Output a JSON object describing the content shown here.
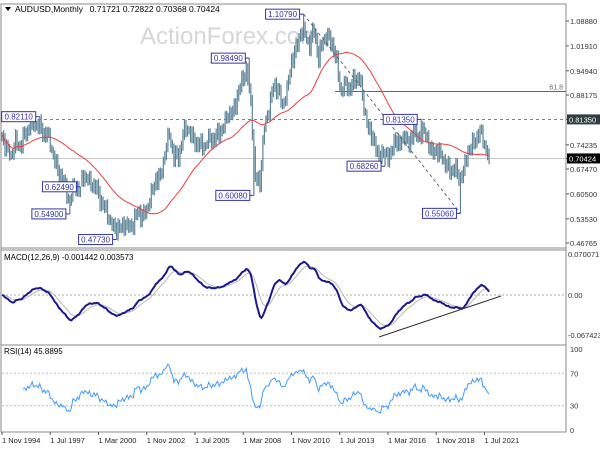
{
  "header": {
    "dropdown_icon": "triangle-down-icon",
    "symbol": "AUDUSD,Monthly",
    "ohlc": "0.71721 0.72822 0.70368 0.70424"
  },
  "watermark": "ActionForex.com",
  "colors": {
    "bars": "#5f8599",
    "moving_average": "#f03c3c",
    "macd": "#1a1a8c",
    "macd_signal": "#b8b8b8",
    "rsi": "#3d9bff",
    "swing_label": "#3333aa",
    "current_price_bg": "#000000",
    "level_bg": "#2f3f3f"
  },
  "chart_data": [
    {
      "type": "bar",
      "title": "AUDUSD,Monthly",
      "x_tick_labels": [
        "1 Nov 1994",
        "1 Jul 1997",
        "1 Mar 2000",
        "1 Nov 2002",
        "1 Jul 2005",
        "1 Mar 2008",
        "1 Nov 2010",
        "1 Jul 2013",
        "1 Mar 2016",
        "1 Nov 2018",
        "1 Jul 2021"
      ],
      "y_tick_labels": [
        "1.08880",
        "1.01910",
        "0.94940",
        "0.88175",
        "0.81350",
        "0.74235",
        "0.70424",
        "0.67470",
        "0.60500",
        "0.53530",
        "0.46765"
      ],
      "ylim": [
        0.46765,
        1.0888
      ],
      "current_price": "0.70424",
      "closes": [
        [
          "1994-11",
          0.77
        ],
        [
          "1995-02",
          0.73
        ],
        [
          "1995-05",
          0.71
        ],
        [
          "1995-08",
          0.75
        ],
        [
          "1995-11",
          0.74
        ],
        [
          "1996-02",
          0.77
        ],
        [
          "1996-05",
          0.79
        ],
        [
          "1996-08",
          0.8
        ],
        [
          "1996-11",
          0.8
        ],
        [
          "1997-02",
          0.78
        ],
        [
          "1997-05",
          0.77
        ],
        [
          "1997-08",
          0.73
        ],
        [
          "1997-11",
          0.68
        ],
        [
          "1998-02",
          0.66
        ],
        [
          "1998-05",
          0.62
        ],
        [
          "1998-08",
          0.58
        ],
        [
          "1998-11",
          0.63
        ],
        [
          "1999-02",
          0.62
        ],
        [
          "1999-05",
          0.66
        ],
        [
          "1999-08",
          0.64
        ],
        [
          "1999-11",
          0.63
        ],
        [
          "2000-02",
          0.62
        ],
        [
          "2000-05",
          0.58
        ],
        [
          "2000-08",
          0.56
        ],
        [
          "2000-11",
          0.52
        ],
        [
          "2001-02",
          0.51
        ],
        [
          "2001-05",
          0.51
        ],
        [
          "2001-08",
          0.52
        ],
        [
          "2001-11",
          0.51
        ],
        [
          "2002-02",
          0.52
        ],
        [
          "2002-05",
          0.56
        ],
        [
          "2002-08",
          0.54
        ],
        [
          "2002-11",
          0.56
        ],
        [
          "2003-02",
          0.6
        ],
        [
          "2003-05",
          0.65
        ],
        [
          "2003-08",
          0.65
        ],
        [
          "2003-11",
          0.72
        ],
        [
          "2004-02",
          0.77
        ],
        [
          "2004-05",
          0.71
        ],
        [
          "2004-08",
          0.71
        ],
        [
          "2004-11",
          0.77
        ],
        [
          "2005-02",
          0.79
        ],
        [
          "2005-05",
          0.76
        ],
        [
          "2005-08",
          0.75
        ],
        [
          "2005-11",
          0.74
        ],
        [
          "2006-02",
          0.74
        ],
        [
          "2006-05",
          0.76
        ],
        [
          "2006-08",
          0.76
        ],
        [
          "2006-11",
          0.78
        ],
        [
          "2007-02",
          0.79
        ],
        [
          "2007-05",
          0.83
        ],
        [
          "2007-08",
          0.83
        ],
        [
          "2007-11",
          0.88
        ],
        [
          "2008-02",
          0.92
        ],
        [
          "2008-05",
          0.95
        ],
        [
          "2008-08",
          0.86
        ],
        [
          "2008-11",
          0.65
        ],
        [
          "2009-02",
          0.64
        ],
        [
          "2009-05",
          0.79
        ],
        [
          "2009-08",
          0.84
        ],
        [
          "2009-11",
          0.91
        ],
        [
          "2010-02",
          0.9
        ],
        [
          "2010-05",
          0.85
        ],
        [
          "2010-08",
          0.89
        ],
        [
          "2010-11",
          0.98
        ],
        [
          "2011-02",
          1.01
        ],
        [
          "2011-05",
          1.06
        ],
        [
          "2011-08",
          1.05
        ],
        [
          "2011-11",
          1.02
        ],
        [
          "2012-02",
          1.07
        ],
        [
          "2012-05",
          0.98
        ],
        [
          "2012-08",
          1.04
        ],
        [
          "2012-11",
          1.04
        ],
        [
          "2013-02",
          1.03
        ],
        [
          "2013-05",
          0.97
        ],
        [
          "2013-08",
          0.89
        ],
        [
          "2013-11",
          0.91
        ],
        [
          "2014-02",
          0.9
        ],
        [
          "2014-05",
          0.93
        ],
        [
          "2014-08",
          0.93
        ],
        [
          "2014-11",
          0.85
        ],
        [
          "2015-02",
          0.78
        ],
        [
          "2015-05",
          0.77
        ],
        [
          "2015-08",
          0.71
        ],
        [
          "2015-11",
          0.72
        ],
        [
          "2016-02",
          0.71
        ],
        [
          "2016-05",
          0.72
        ],
        [
          "2016-08",
          0.76
        ],
        [
          "2016-11",
          0.74
        ],
        [
          "2017-02",
          0.77
        ],
        [
          "2017-05",
          0.74
        ],
        [
          "2017-08",
          0.79
        ],
        [
          "2017-11",
          0.76
        ],
        [
          "2018-02",
          0.78
        ],
        [
          "2018-05",
          0.76
        ],
        [
          "2018-08",
          0.72
        ],
        [
          "2018-11",
          0.73
        ],
        [
          "2019-02",
          0.71
        ],
        [
          "2019-05",
          0.69
        ],
        [
          "2019-08",
          0.67
        ],
        [
          "2019-11",
          0.68
        ],
        [
          "2020-02",
          0.65
        ],
        [
          "2020-05",
          0.66
        ],
        [
          "2020-08",
          0.73
        ],
        [
          "2020-11",
          0.74
        ],
        [
          "2021-02",
          0.77
        ],
        [
          "2021-05",
          0.77
        ],
        [
          "2021-08",
          0.73
        ],
        [
          "2021-10",
          0.70424
        ]
      ],
      "swing_labels": [
        {
          "date": "1996-12",
          "value": 0.8211,
          "text": "0.82110",
          "kind": "high"
        },
        {
          "date": "1999-03",
          "value": 0.6249,
          "text": "0.62490",
          "kind": "high"
        },
        {
          "date": "1998-08",
          "value": 0.549,
          "text": "0.54900",
          "kind": "low"
        },
        {
          "date": "2001-03",
          "value": 0.4773,
          "text": "0.47730",
          "kind": "low"
        },
        {
          "date": "2008-07",
          "value": 0.9849,
          "text": "0.98490",
          "kind": "high"
        },
        {
          "date": "2008-10",
          "value": 0.6008,
          "text": "0.60080",
          "kind": "low"
        },
        {
          "date": "2011-07",
          "value": 1.1079,
          "text": "1.10790",
          "kind": "high"
        },
        {
          "date": "2016-01",
          "value": 0.6826,
          "text": "0.68260",
          "kind": "low"
        },
        {
          "date": "2018-01",
          "value": 0.8135,
          "text": "0.81350",
          "kind": "high"
        },
        {
          "date": "2020-03",
          "value": 0.5506,
          "text": "0.55060",
          "kind": "low"
        }
      ],
      "levels": [
        {
          "value": 0.8135,
          "style": "dashed",
          "label": "0.81350"
        },
        {
          "value": 0.8915,
          "style": "solid",
          "label": "61.8"
        },
        {
          "value": 0.70424,
          "style": "solid-grey",
          "label": "0.70424"
        }
      ],
      "trendline": {
        "from": [
          "2011-07",
          1.1079
        ],
        "to": [
          "2020-03",
          0.5506
        ],
        "style": "dashed"
      }
    },
    {
      "type": "line",
      "title": "MACD(12,26,9) -0.001442 0.003573",
      "y_tick_labels": [
        "0.070071",
        "0.00",
        "-0.067423"
      ],
      "ylim": [
        -0.067423,
        0.070071
      ],
      "macd": -0.001442,
      "signal": 0.003573,
      "trendline": {
        "from": "2015-09",
        "to": "2022-06"
      }
    },
    {
      "type": "line",
      "title": "RSI(14) 45.8895",
      "value": 45.8895,
      "y_tick_labels": [
        "100",
        "70",
        "30",
        "0"
      ],
      "ylim": [
        0,
        100
      ],
      "levels": [
        70,
        30
      ]
    }
  ]
}
